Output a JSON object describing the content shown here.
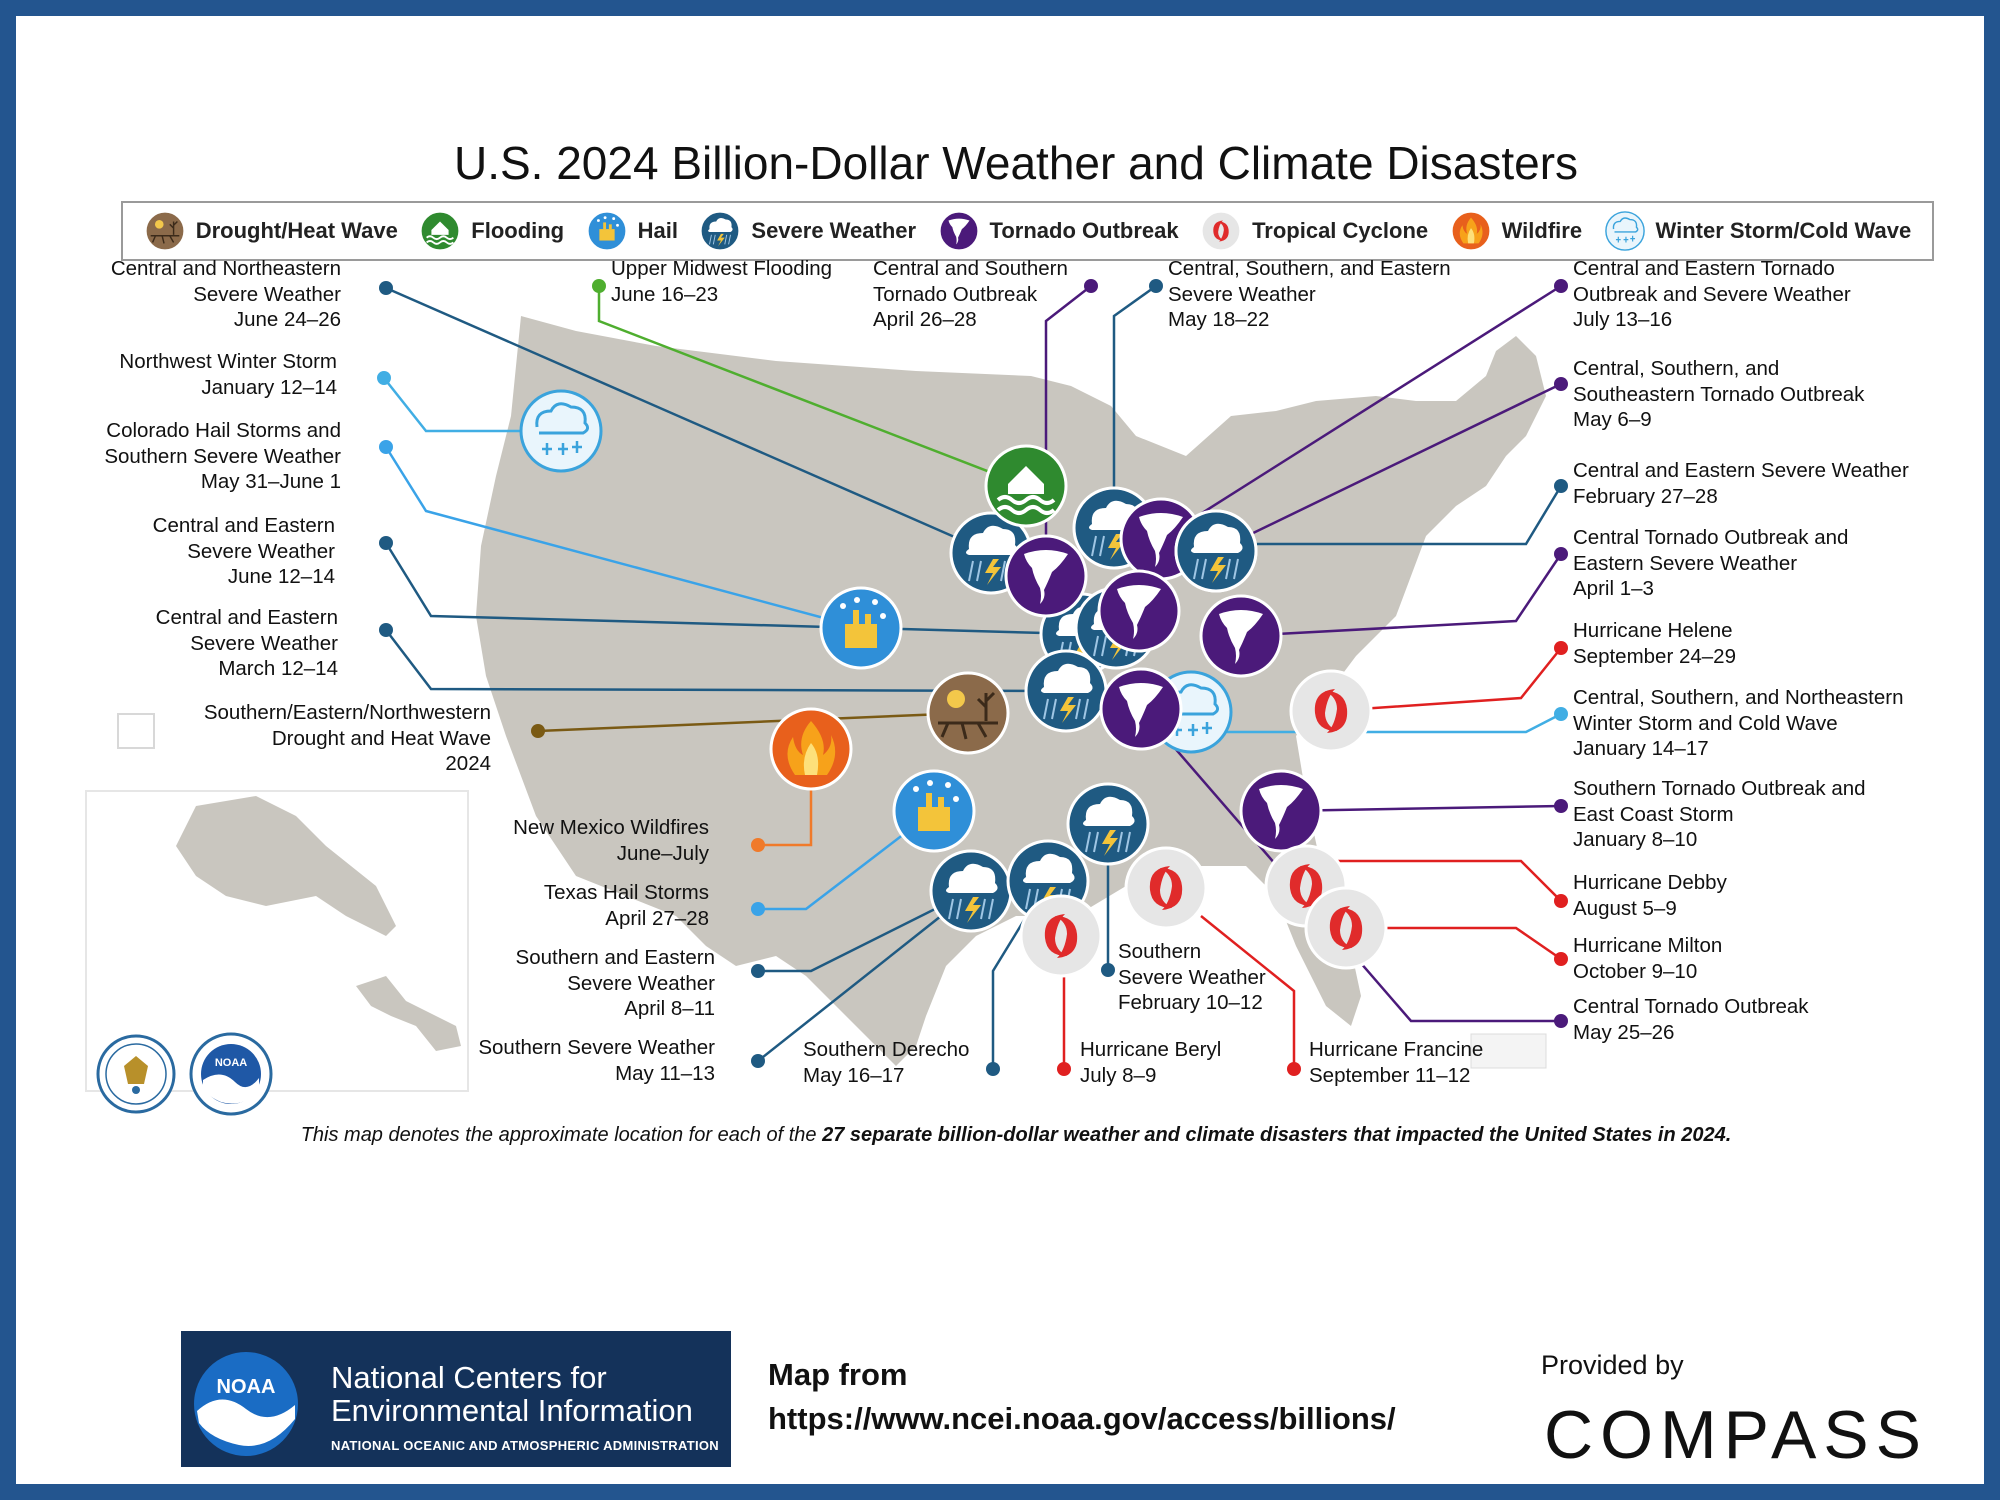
{
  "title": "U.S. 2024 Billion-Dollar Weather and Climate Disasters",
  "legend": [
    {
      "label": "Drought/Heat Wave",
      "icon": "drought-icon",
      "color": "#8b6a4a"
    },
    {
      "label": "Flooding",
      "icon": "flood-icon",
      "color": "#2f8a2f"
    },
    {
      "label": "Hail",
      "icon": "hail-icon",
      "color": "#2f8fd8"
    },
    {
      "label": "Severe Weather",
      "icon": "severe-weather-icon",
      "color": "#1f5a82"
    },
    {
      "label": "Tornado Outbreak",
      "icon": "tornado-icon",
      "color": "#4b1a7a"
    },
    {
      "label": "Tropical Cyclone",
      "icon": "cyclone-icon",
      "color": "#e02b2b"
    },
    {
      "label": "Wildfire",
      "icon": "wildfire-icon",
      "color": "#e8601c"
    },
    {
      "label": "Winter Storm/Cold Wave",
      "icon": "winter-storm-icon",
      "color": "#3aa3dc"
    }
  ],
  "events": [
    {
      "lines": [
        "Central and Northeastern",
        "Severe Weather",
        "June 24–26"
      ],
      "type": "severe"
    },
    {
      "lines": [
        "Northwest Winter Storm",
        "January 12–14"
      ],
      "type": "winter"
    },
    {
      "lines": [
        "Colorado Hail Storms and",
        "Southern Severe Weather",
        "May 31–June 1"
      ],
      "type": "hail"
    },
    {
      "lines": [
        "Central and Eastern",
        "Severe Weather",
        "June 12–14"
      ],
      "type": "severe"
    },
    {
      "lines": [
        "Central and Eastern",
        "Severe Weather",
        "March 12–14"
      ],
      "type": "severe"
    },
    {
      "lines": [
        "Southern/Eastern/Northwestern",
        "Drought and Heat Wave",
        "2024"
      ],
      "type": "drought"
    },
    {
      "lines": [
        "Upper Midwest Flooding",
        "June 16–23"
      ],
      "type": "flood"
    },
    {
      "lines": [
        "Central and Southern",
        "Tornado Outbreak",
        "April 26–28"
      ],
      "type": "tornado"
    },
    {
      "lines": [
        "Central, Southern, and Eastern",
        "Severe Weather",
        "May 18–22"
      ],
      "type": "severe"
    },
    {
      "lines": [
        "Central and Eastern Tornado",
        "Outbreak and Severe Weather",
        "July 13–16"
      ],
      "type": "tornado"
    },
    {
      "lines": [
        "Central, Southern, and",
        "Southeastern Tornado Outbreak",
        "May 6–9"
      ],
      "type": "tornado"
    },
    {
      "lines": [
        "Central and Eastern Severe Weather",
        "February 27–28"
      ],
      "type": "severe"
    },
    {
      "lines": [
        "Central Tornado Outbreak and",
        "Eastern Severe Weather",
        "April 1–3"
      ],
      "type": "tornado"
    },
    {
      "lines": [
        "Hurricane Helene",
        "September 24–29"
      ],
      "type": "cyclone"
    },
    {
      "lines": [
        "Central, Southern, and Northeastern",
        "Winter Storm and Cold Wave",
        "January 14–17"
      ],
      "type": "winter"
    },
    {
      "lines": [
        "Southern Tornado Outbreak and",
        "East Coast Storm",
        "January 8–10"
      ],
      "type": "tornado"
    },
    {
      "lines": [
        "Hurricane Debby",
        "August 5–9"
      ],
      "type": "cyclone"
    },
    {
      "lines": [
        "Hurricane Milton",
        "October 9–10"
      ],
      "type": "cyclone"
    },
    {
      "lines": [
        "Central Tornado Outbreak",
        "May 25–26"
      ],
      "type": "tornado"
    },
    {
      "lines": [
        "New Mexico Wildfires",
        "June–July"
      ],
      "type": "wildfire"
    },
    {
      "lines": [
        "Texas Hail Storms",
        "April 27–28"
      ],
      "type": "hail"
    },
    {
      "lines": [
        "Southern and Eastern",
        "Severe Weather",
        "April 8–11"
      ],
      "type": "severe"
    },
    {
      "lines": [
        "Southern Severe Weather",
        "May 11–13"
      ],
      "type": "severe"
    },
    {
      "lines": [
        "Southern Derecho",
        "May 16–17"
      ],
      "type": "severe"
    },
    {
      "lines": [
        "Hurricane Beryl",
        "July 8–9"
      ],
      "type": "cyclone"
    },
    {
      "lines": [
        "Southern",
        "Severe Weather",
        "February 10–12"
      ],
      "type": "severe"
    },
    {
      "lines": [
        "Hurricane Francine",
        "September 11–12"
      ],
      "type": "cyclone"
    }
  ],
  "caption": {
    "prefix": "This map denotes the approximate location for each of the ",
    "bold": "27 separate billion-dollar weather and climate disasters that impacted the United States in 2024."
  },
  "footer": {
    "ncei_logo_text": "NOAA",
    "ncei_line1": "National Centers for",
    "ncei_line2": "Environmental Information",
    "ncei_line3": "NATIONAL OCEANIC AND ATMOSPHERIC ADMINISTRATION",
    "map_from_label": "Map from",
    "map_from_url": "https://www.ncei.noaa.gov/access/billions/",
    "provided_by": "Provided by",
    "brand": "COMPASS"
  },
  "seals": {
    "noaa_text": "NOAA"
  },
  "colors": {
    "frame": "#23558f",
    "land": "#c9c6bf",
    "ncei_bg": "#14325a"
  }
}
